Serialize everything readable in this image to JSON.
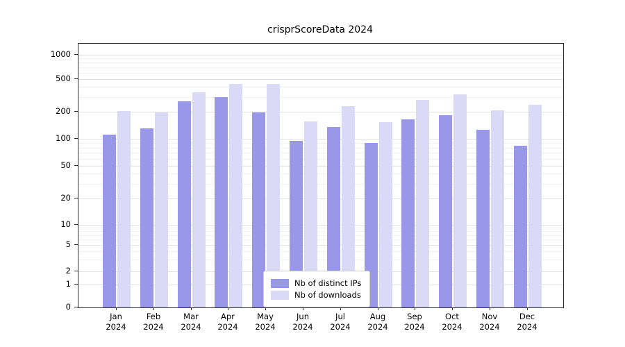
{
  "title": "crisprScoreData 2024",
  "colors": {
    "distinct_ips": "#9897e8",
    "downloads": "#dadaf7",
    "grid_major": "#e2e2e2",
    "grid_minor": "#f1f1f1",
    "axis": "#2b2b2b"
  },
  "chart_data": {
    "type": "bar",
    "title": "crisprScoreData 2024",
    "months": [
      "Jan",
      "Feb",
      "Mar",
      "Apr",
      "May",
      "Jun",
      "Jul",
      "Aug",
      "Sep",
      "Oct",
      "Nov",
      "Dec"
    ],
    "year": "2024",
    "series": [
      {
        "name": "Nb of distinct IPs",
        "color": "#9897e8",
        "values": [
          112,
          130,
          270,
          300,
          197,
          95,
          135,
          90,
          165,
          183,
          127,
          84
        ]
      },
      {
        "name": "Nb of downloads",
        "color": "#dadaf7",
        "values": [
          205,
          195,
          345,
          440,
          440,
          155,
          235,
          152,
          280,
          325,
          207,
          245
        ]
      }
    ],
    "yticks": [
      0,
      1,
      2,
      5,
      10,
      20,
      50,
      100,
      200,
      500,
      1000
    ],
    "yscale": "log",
    "ylim": [
      0,
      1000
    ],
    "grid": true,
    "legend_position": "lower center"
  }
}
